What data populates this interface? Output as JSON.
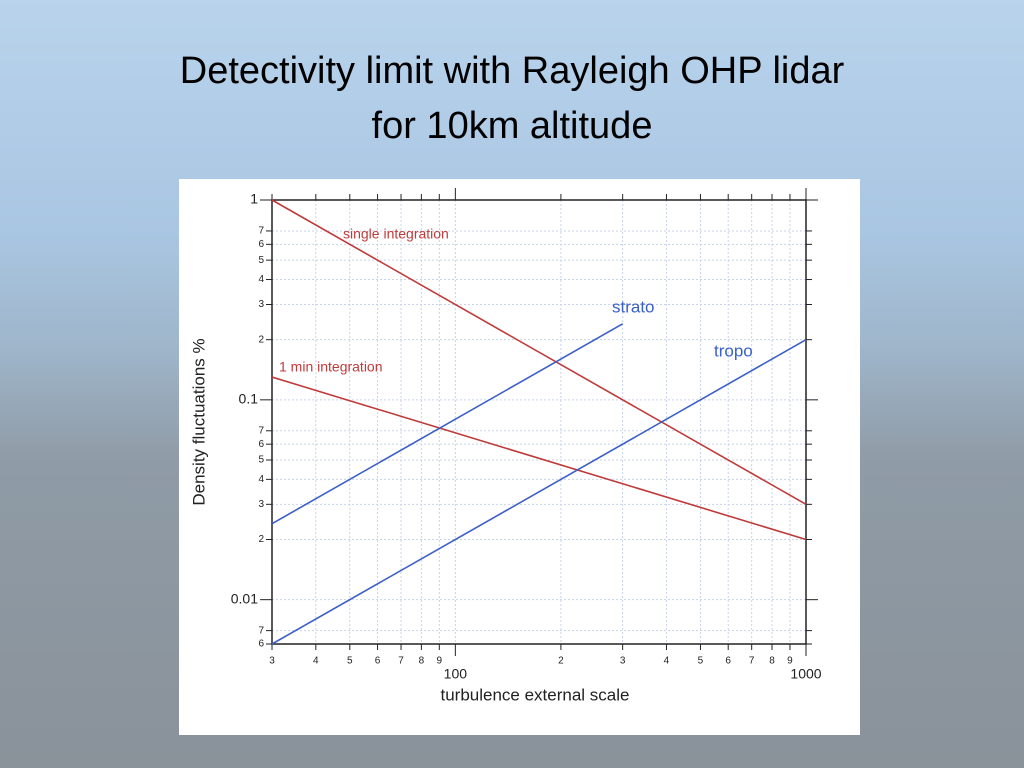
{
  "slide": {
    "title": [
      "Detectivity limit with Rayleigh OHP lidar",
      "for 10km altitude"
    ]
  },
  "chart_data": {
    "type": "line",
    "xlabel": "turbulence external scale",
    "ylabel": "Density fluctuations %",
    "xscale": "log",
    "yscale": "log",
    "grid": true,
    "xlim": [
      30,
      1000
    ],
    "ylim": [
      0.006,
      1
    ],
    "xticks": [
      {
        "value": 30,
        "label": "3"
      },
      {
        "value": 40,
        "label": "4"
      },
      {
        "value": 50,
        "label": "5"
      },
      {
        "value": 60,
        "label": "6"
      },
      {
        "value": 70,
        "label": "7"
      },
      {
        "value": 80,
        "label": "8"
      },
      {
        "value": 90,
        "label": "9"
      },
      100,
      {
        "value": 200,
        "label": "2"
      },
      {
        "value": 300,
        "label": "3"
      },
      {
        "value": 400,
        "label": "4"
      },
      {
        "value": 500,
        "label": "5"
      },
      {
        "value": 600,
        "label": "6"
      },
      {
        "value": 700,
        "label": "7"
      },
      {
        "value": 800,
        "label": "8"
      },
      {
        "value": 900,
        "label": "9"
      },
      1000
    ],
    "yticks": [
      1,
      {
        "value": 0.7,
        "label": "7"
      },
      {
        "value": 0.6,
        "label": "6"
      },
      {
        "value": 0.5,
        "label": "5"
      },
      {
        "value": 0.4,
        "label": "4"
      },
      {
        "value": 0.3,
        "label": "3"
      },
      {
        "value": 0.2,
        "label": "2"
      },
      0.1,
      {
        "value": 0.07,
        "label": "7"
      },
      {
        "value": 0.06,
        "label": "6"
      },
      {
        "value": 0.05,
        "label": "5"
      },
      {
        "value": 0.04,
        "label": "4"
      },
      {
        "value": 0.03,
        "label": "3"
      },
      {
        "value": 0.02,
        "label": "2"
      },
      0.01,
      {
        "value": 0.007,
        "label": "7"
      },
      {
        "value": 0.006,
        "label": "6"
      }
    ],
    "series": [
      {
        "name": "single integration",
        "color": "#c03a3a",
        "x": [
          30,
          1000
        ],
        "values": [
          1,
          0.03
        ]
      },
      {
        "name": "1 min integration",
        "color": "#c03a3a",
        "x": [
          30,
          1000
        ],
        "values": [
          0.13,
          0.02
        ]
      },
      {
        "name": "strato",
        "color": "#3a5fc8",
        "x": [
          30,
          300
        ],
        "values": [
          0.024,
          0.24
        ]
      },
      {
        "name": "tropo",
        "color": "#3a5fc8",
        "x": [
          30,
          1000
        ],
        "values": [
          0.006,
          0.2
        ]
      }
    ]
  }
}
